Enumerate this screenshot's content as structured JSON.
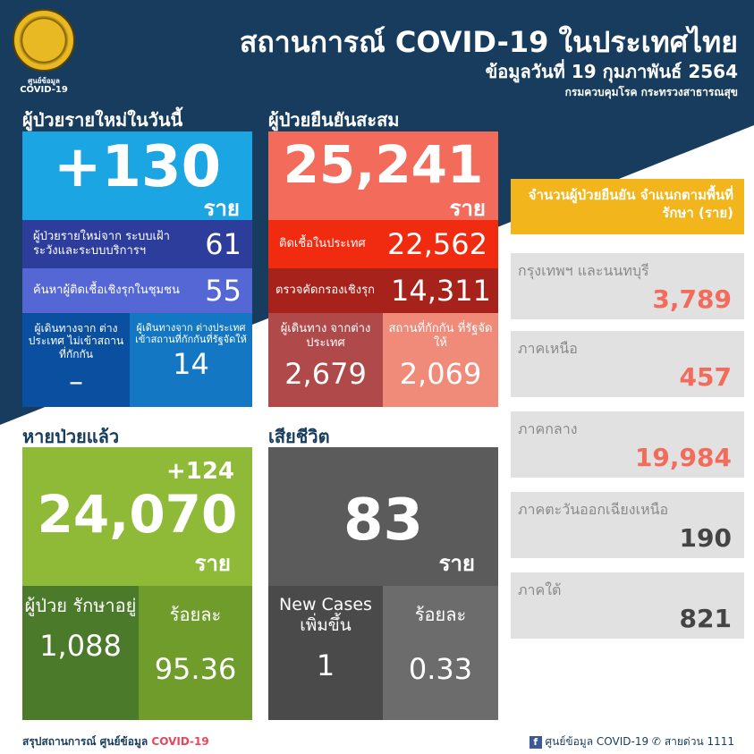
{
  "header": {
    "logo_text": "ศูนย์ข้อมูล",
    "logo_sub": "COVID-19",
    "title": "สถานการณ์ COVID-19 ในประเทศไทย",
    "date": "ข้อมูลวันที่ 19 กุมภาพันธ์ 2564",
    "source": "กรมควบคุมโรค กระทรวงสาธารณสุข"
  },
  "new_cases": {
    "heading": "ผู้ป่วยรายใหม่ในวันนี้",
    "total": "+130",
    "unit": "ราย",
    "surveillance_label": "ผู้ป่วยรายใหม่จาก ระบบเฝ้าระวังและระบบบริการฯ",
    "surveillance": "61",
    "community_label": "ค้นหาผู้ติดเชื้อเชิงรุกในชุมชน",
    "community": "55",
    "travel_noquarantine_label": "ผู้เดินทางจาก ต่างประเทศ ไม่เข้าสถานที่กักกัน",
    "travel_noquarantine": "–",
    "travel_quarantine_label": "ผู้เดินทางจาก ต่างประเทศ เข้าสถานที่กักกันที่รัฐจัดให้",
    "travel_quarantine": "14"
  },
  "cumulative": {
    "heading": "ผู้ป่วยยืนยันสะสม",
    "total": "25,241",
    "unit": "ราย",
    "domestic_label": "ติดเชื้อในประเทศ",
    "domestic": "22,562",
    "active_label": "ตรวจคัดกรองเชิงรุก",
    "active": "14,311",
    "travelers_label": "ผู้เดินทาง จากต่างประเทศ",
    "travelers": "2,679",
    "quarantine_label": "สถานที่กักกัน ที่รัฐจัดให้",
    "quarantine": "2,069"
  },
  "recovered": {
    "heading": "หายป่วยแล้ว",
    "delta": "+124",
    "total": "24,070",
    "unit": "ราย",
    "hosp_label": "ผู้ป่วย รักษาอยู่",
    "hosp": "1,088",
    "pct_label": "ร้อยละ",
    "pct": "95.36"
  },
  "deaths": {
    "heading": "เสียชีวิต",
    "total": "83",
    "unit": "ราย",
    "new_label": "New Cases เพิ่มขึ้น",
    "new": "1",
    "pct_label": "ร้อยละ",
    "pct": "0.33"
  },
  "regions": {
    "heading": "จำนวนผู้ป่วยยืนยัน จำแนกตามพื้นที่รักษา (ราย)",
    "items": [
      {
        "name": "กรุงเทพฯ และนนทบุรี",
        "value": "3,789",
        "color": "#f26b5b"
      },
      {
        "name": "ภาคเหนือ",
        "value": "457",
        "color": "#f26b5b"
      },
      {
        "name": "ภาคกลาง",
        "value": "19,984",
        "color": "#f26b5b"
      },
      {
        "name": "ภาคตะวันออกเฉียงเหนือ",
        "value": "190",
        "color": "#444444"
      },
      {
        "name": "ภาคใต้",
        "value": "821",
        "color": "#444444"
      }
    ]
  },
  "footer": {
    "left": "สรุปสถานการณ์ ศูนย์ข้อมูล",
    "left_accent": "COVID-19",
    "fb": "ศูนย์ข้อมูล COVID-19",
    "hotline": "สายด่วน 1111"
  }
}
